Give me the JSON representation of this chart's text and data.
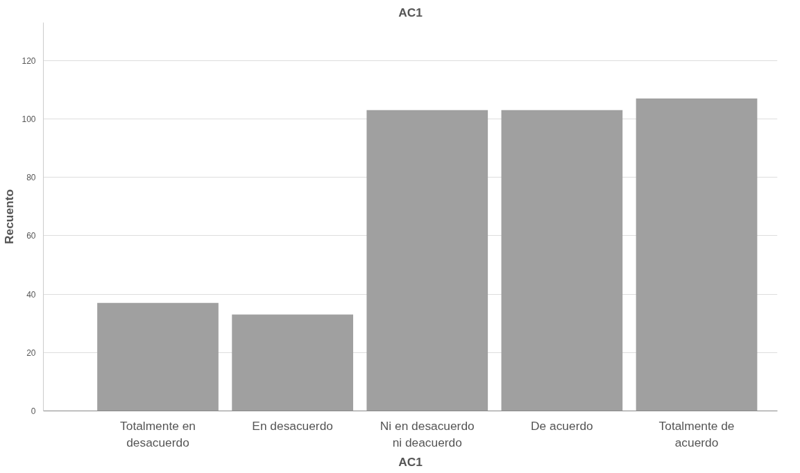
{
  "chart_data": {
    "type": "bar",
    "title": "AC1",
    "xlabel": "AC1",
    "ylabel": "Recuento",
    "categories": [
      "Totalmente en desacuerdo",
      "En desacuerdo",
      "Ni en desacuerdo ni deacuerdo",
      "De acuerdo",
      "Totalmente de acuerdo"
    ],
    "values": [
      37,
      33,
      103,
      103,
      107
    ],
    "color": "#a0a0a0",
    "ylim": [
      0,
      133
    ],
    "yticks": [
      0,
      20,
      40,
      60,
      80,
      100,
      120
    ],
    "grid": "y"
  }
}
